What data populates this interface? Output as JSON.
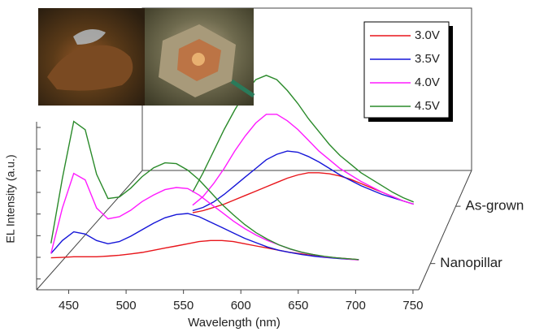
{
  "chart_data": {
    "type": "waterfall",
    "x_label": "Wavelength (nm)",
    "y_label": "EL Intensity (a.u.)",
    "x": [
      430,
      440,
      450,
      460,
      470,
      480,
      490,
      500,
      510,
      520,
      530,
      540,
      550,
      560,
      570,
      580,
      590,
      600,
      610,
      620,
      630,
      640,
      650,
      660,
      670,
      680,
      690,
      700,
      710,
      720
    ],
    "z_categories": [
      "Nanopillar",
      "As-grown"
    ],
    "series": [
      {
        "name": "3.0V",
        "color": "#e8151b",
        "values": [
          [
            0.7,
            0.72,
            0.75,
            0.75,
            0.75,
            0.78,
            0.82,
            0.88,
            0.95,
            1.05,
            1.15,
            1.25,
            1.35,
            1.45,
            1.5,
            1.5,
            1.45,
            1.35,
            1.25,
            1.15,
            1.05,
            0.95,
            0.88,
            0.8,
            0.75,
            0.7,
            0.66,
            0.62,
            null,
            null
          ],
          [
            null,
            null,
            null,
            null,
            null,
            null,
            null,
            null,
            -0.25,
            -0.15,
            0.0,
            0.15,
            0.35,
            0.55,
            0.75,
            0.95,
            1.15,
            1.35,
            1.5,
            1.6,
            1.6,
            1.55,
            1.45,
            1.3,
            1.1,
            0.9,
            0.7,
            0.5,
            0.3,
            0.15
          ]
        ]
      },
      {
        "name": "3.5V",
        "color": "#1515d8",
        "values": [
          [
            0.9,
            1.5,
            1.9,
            1.8,
            1.5,
            1.35,
            1.45,
            1.7,
            2.0,
            2.3,
            2.55,
            2.7,
            2.75,
            2.6,
            2.35,
            2.1,
            1.85,
            1.6,
            1.4,
            1.2,
            1.05,
            0.95,
            0.85,
            0.78,
            0.72,
            0.68,
            0.64,
            0.62,
            null,
            null
          ],
          [
            null,
            null,
            null,
            null,
            null,
            null,
            null,
            null,
            -0.15,
            0.0,
            0.25,
            0.6,
            1.0,
            1.4,
            1.8,
            2.2,
            2.45,
            2.6,
            2.55,
            2.35,
            2.1,
            1.8,
            1.5,
            1.25,
            1.0,
            0.8,
            0.6,
            0.45,
            0.3,
            0.15
          ]
        ]
      },
      {
        "name": "4.0V",
        "color": "#ff1aff",
        "values": [
          [
            0.9,
            3.0,
            4.6,
            4.3,
            3.0,
            2.5,
            2.6,
            2.9,
            3.3,
            3.6,
            3.85,
            3.95,
            3.9,
            3.6,
            3.2,
            2.8,
            2.4,
            2.05,
            1.75,
            1.5,
            1.3,
            1.1,
            0.95,
            0.85,
            0.75,
            0.7,
            0.65,
            0.6,
            null,
            null
          ],
          [
            null,
            null,
            null,
            null,
            null,
            null,
            null,
            null,
            0.1,
            0.5,
            1.1,
            1.8,
            2.6,
            3.3,
            3.9,
            4.3,
            4.3,
            4.0,
            3.6,
            3.1,
            2.6,
            2.2,
            1.8,
            1.5,
            1.2,
            0.95,
            0.7,
            0.5,
            0.3,
            0.15
          ]
        ]
      },
      {
        "name": "4.5V",
        "color": "#2a8a2a",
        "values": [
          [
            1.37,
            4.37,
            7.0,
            6.62,
            4.56,
            3.44,
            3.51,
            3.92,
            4.45,
            4.86,
            5.09,
            5.05,
            4.75,
            4.3,
            3.74,
            3.17,
            2.69,
            2.24,
            1.86,
            1.56,
            1.3,
            1.11,
            0.96,
            0.85,
            0.77,
            0.7,
            0.66,
            0.62,
            null,
            null
          ],
          [
            null,
            null,
            null,
            null,
            null,
            null,
            null,
            null,
            0.7,
            1.6,
            2.6,
            3.6,
            4.5,
            5.3,
            5.9,
            6.1,
            5.9,
            5.4,
            4.8,
            4.1,
            3.5,
            2.9,
            2.4,
            2.0,
            1.6,
            1.3,
            1.0,
            0.7,
            0.45,
            0.25
          ]
        ]
      }
    ],
    "xlim": [
      422,
      755
    ],
    "xticks": [
      450,
      500,
      550,
      600,
      650,
      700,
      750
    ],
    "ylim": [
      -0.5,
      7
    ],
    "yticks": [
      0,
      1,
      2,
      3,
      4,
      5,
      6,
      7
    ]
  }
}
